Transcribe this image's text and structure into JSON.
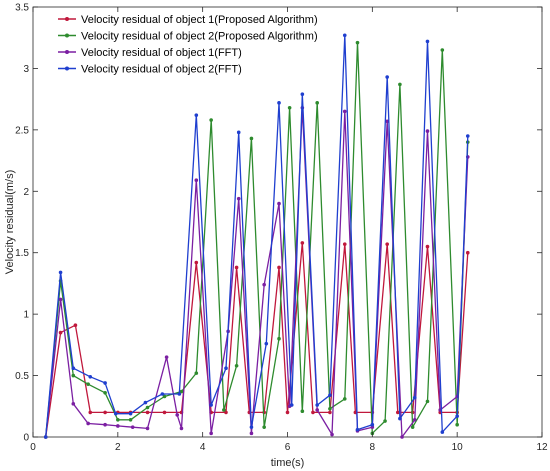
{
  "chart_data": {
    "type": "line",
    "xlabel": "time(s)",
    "ylabel": "Velocity residual(m/s)",
    "xlim": [
      0,
      12
    ],
    "ylim": [
      0,
      3.5
    ],
    "xticks": [
      0,
      2,
      4,
      6,
      8,
      10,
      12
    ],
    "yticks": [
      0,
      0.5,
      1,
      1.5,
      2,
      2.5,
      3,
      3.5
    ],
    "grid": false,
    "legend_position": "top-left",
    "series": [
      {
        "name": "Velocity residual of object 1(Proposed Algorithm)",
        "color": "#C0183C",
        "x": [
          0.3,
          0.65,
          1.0,
          1.35,
          1.7,
          2.0,
          2.3,
          2.7,
          3.1,
          3.5,
          3.85,
          4.2,
          4.55,
          4.8,
          5.1,
          5.45,
          5.8,
          6.0,
          6.35,
          6.6,
          7.0,
          7.35,
          7.6,
          8.0,
          8.35,
          8.6,
          8.95,
          9.3,
          9.6,
          10.0,
          10.25
        ],
        "y": [
          0.0,
          0.85,
          0.91,
          0.2,
          0.2,
          0.2,
          0.2,
          0.2,
          0.2,
          0.2,
          1.42,
          0.2,
          0.2,
          1.38,
          0.2,
          0.2,
          1.38,
          0.2,
          1.58,
          0.2,
          0.2,
          1.57,
          0.2,
          0.2,
          1.57,
          0.2,
          0.2,
          1.55,
          0.2,
          0.2,
          1.5
        ]
      },
      {
        "name": "Velocity residual of object 2(Proposed Algorithm)",
        "color": "#2E8B2E",
        "x": [
          0.3,
          0.65,
          0.95,
          1.3,
          1.7,
          2.0,
          2.3,
          2.7,
          3.1,
          3.5,
          3.85,
          4.2,
          4.5,
          4.8,
          5.15,
          5.45,
          5.8,
          6.05,
          6.35,
          6.7,
          7.0,
          7.35,
          7.65,
          8.0,
          8.3,
          8.65,
          8.95,
          9.3,
          9.65,
          10.0,
          10.25
        ],
        "y": [
          0.0,
          1.27,
          0.5,
          0.43,
          0.36,
          0.14,
          0.14,
          0.24,
          0.33,
          0.37,
          0.52,
          2.58,
          0.22,
          0.58,
          2.43,
          0.08,
          0.8,
          2.68,
          0.21,
          2.72,
          0.23,
          0.31,
          3.21,
          0.03,
          0.13,
          2.87,
          0.08,
          0.29,
          3.15,
          0.1,
          2.4
        ]
      },
      {
        "name": "Velocity residual of object 1(FFT)",
        "color": "#7B1FA2",
        "x": [
          0.3,
          0.65,
          0.95,
          1.3,
          1.7,
          2.0,
          2.35,
          2.7,
          3.15,
          3.4,
          3.5,
          3.85,
          4.2,
          4.6,
          4.85,
          5.15,
          5.45,
          5.8,
          6.05,
          6.35,
          6.7,
          7.05,
          7.35,
          7.65,
          8.0,
          8.35,
          8.7,
          9.0,
          9.3,
          9.6,
          10.0,
          10.25
        ],
        "y": [
          0.0,
          1.12,
          0.27,
          0.11,
          0.1,
          0.09,
          0.08,
          0.07,
          0.65,
          0.18,
          0.07,
          2.09,
          0.03,
          0.86,
          1.94,
          0.03,
          1.24,
          1.9,
          0.25,
          2.68,
          0.22,
          0.02,
          2.65,
          0.05,
          0.08,
          2.57,
          0.0,
          0.14,
          2.49,
          0.22,
          0.33,
          2.28
        ]
      },
      {
        "name": "Velocity residual of object 2(FFT)",
        "color": "#1F3FCF",
        "x": [
          0.3,
          0.65,
          0.95,
          1.35,
          1.7,
          1.95,
          2.3,
          2.65,
          3.05,
          3.45,
          3.85,
          4.2,
          4.55,
          4.85,
          5.15,
          5.5,
          5.8,
          6.1,
          6.35,
          6.7,
          7.0,
          7.35,
          7.65,
          8.0,
          8.35,
          8.65,
          9.0,
          9.3,
          9.65,
          10.0,
          10.25
        ],
        "y": [
          0.0,
          1.34,
          0.56,
          0.49,
          0.44,
          0.19,
          0.19,
          0.28,
          0.35,
          0.35,
          2.62,
          0.26,
          0.56,
          2.48,
          0.08,
          0.76,
          2.72,
          0.26,
          2.79,
          0.26,
          0.34,
          3.27,
          0.06,
          0.1,
          2.93,
          0.15,
          0.32,
          3.22,
          0.04,
          0.17,
          2.45
        ]
      }
    ]
  }
}
